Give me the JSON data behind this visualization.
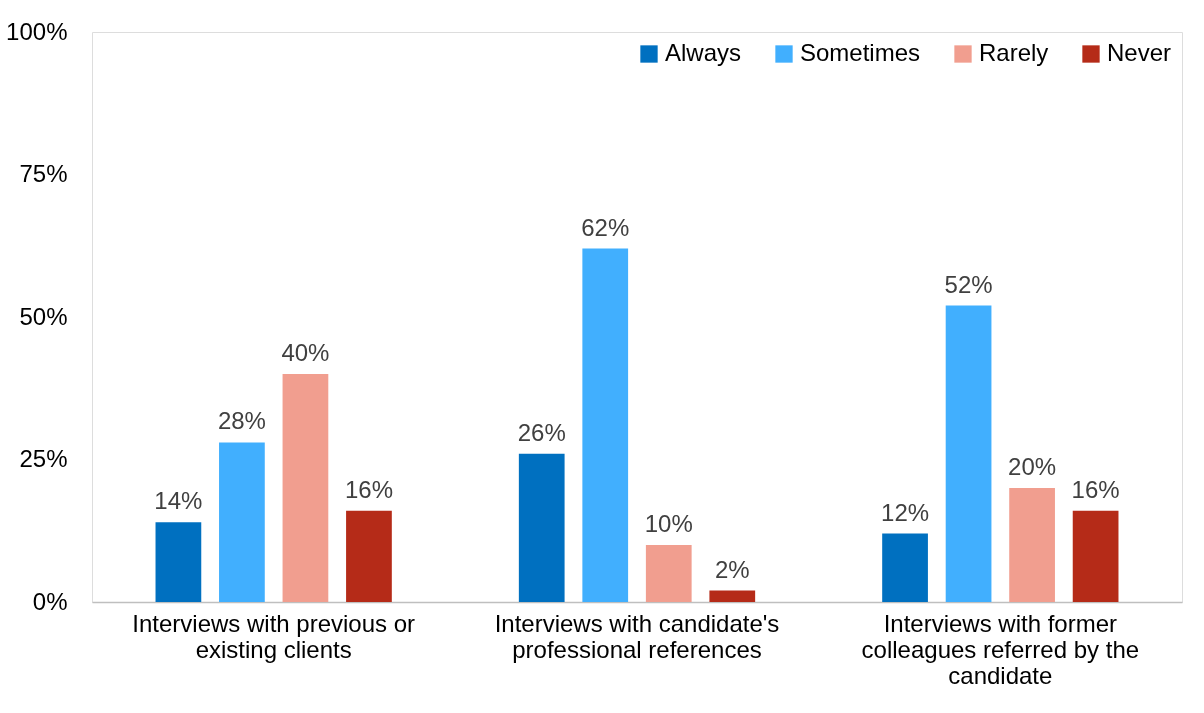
{
  "chart_data": {
    "type": "bar",
    "categories": [
      "Interviews with previous or existing clients",
      "Interviews with candidate's professional references",
      "Interviews with former colleagues referred by the candidate"
    ],
    "series": [
      {
        "name": "Always",
        "color": "#0070c0",
        "values": [
          14,
          26,
          12
        ],
        "value_labels": [
          "14%",
          "26%",
          "12%"
        ]
      },
      {
        "name": "Sometimes",
        "color": "#41affe",
        "values": [
          28,
          62,
          52
        ],
        "value_labels": [
          "28%",
          "62%",
          "52%"
        ]
      },
      {
        "name": "Rarely",
        "color": "#f19e8f",
        "values": [
          40,
          10,
          20
        ],
        "value_labels": [
          "40%",
          "10%",
          "20%"
        ]
      },
      {
        "name": "Never",
        "color": "#b52b18",
        "values": [
          16,
          2,
          16
        ],
        "value_labels": [
          "16%",
          "2%",
          "16%"
        ]
      }
    ],
    "ylim": [
      0,
      100
    ],
    "yticks": [
      {
        "value": 0,
        "label": "0%"
      },
      {
        "value": 25,
        "label": "25%"
      },
      {
        "value": 50,
        "label": "50%"
      },
      {
        "value": 75,
        "label": "75%"
      },
      {
        "value": 100,
        "label": "100%"
      }
    ],
    "grid": false,
    "legend": "top right"
  }
}
